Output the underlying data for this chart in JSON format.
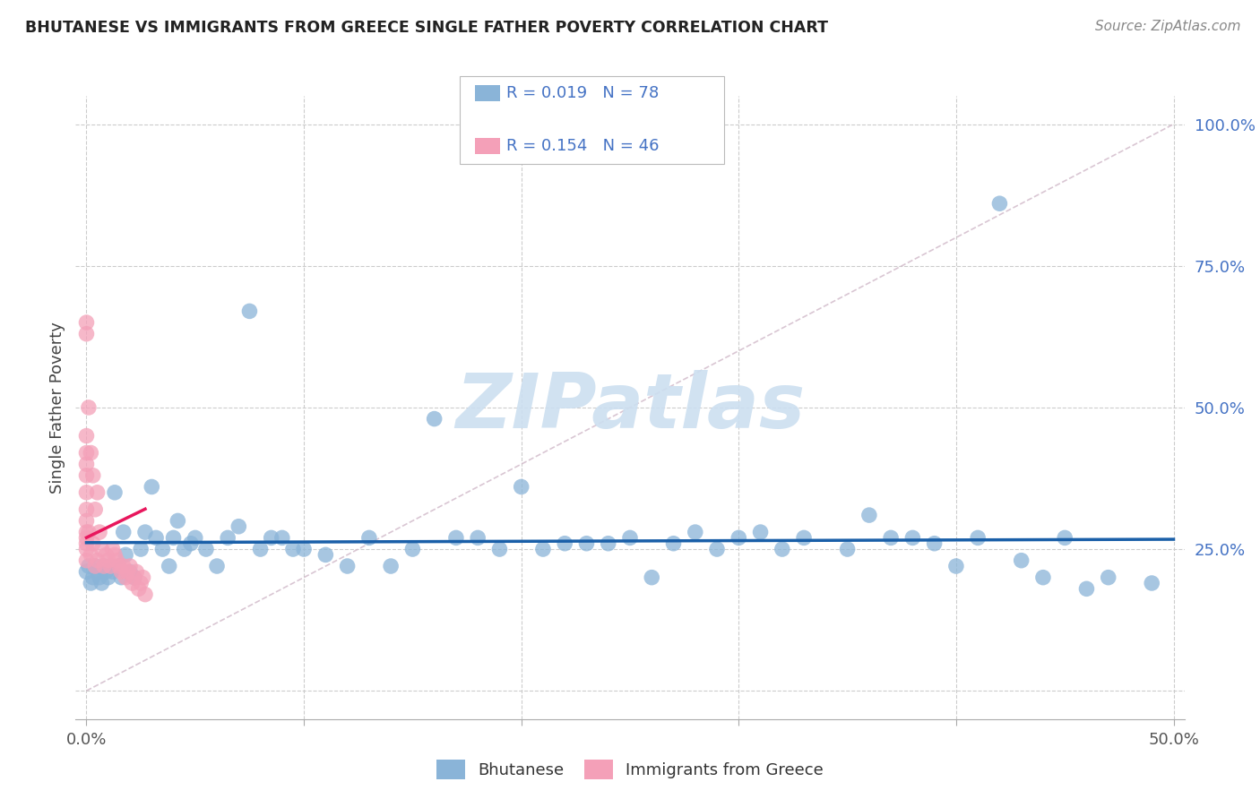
{
  "title": "BHUTANESE VS IMMIGRANTS FROM GREECE SINGLE FATHER POVERTY CORRELATION CHART",
  "source": "Source: ZipAtlas.com",
  "ylabel": "Single Father Poverty",
  "xlim": [
    -0.005,
    0.505
  ],
  "ylim": [
    -0.05,
    1.05
  ],
  "x_ticks": [
    0.0,
    0.1,
    0.2,
    0.3,
    0.4,
    0.5
  ],
  "y_ticks": [
    0.0,
    0.25,
    0.5,
    0.75,
    1.0
  ],
  "r_bhutanese": 0.019,
  "n_bhutanese": 78,
  "r_greece": 0.154,
  "n_greece": 46,
  "bhutanese_x": [
    0.0,
    0.001,
    0.002,
    0.003,
    0.004,
    0.005,
    0.006,
    0.007,
    0.008,
    0.009,
    0.01,
    0.011,
    0.012,
    0.013,
    0.015,
    0.016,
    0.017,
    0.018,
    0.02,
    0.022,
    0.025,
    0.027,
    0.03,
    0.032,
    0.035,
    0.038,
    0.04,
    0.042,
    0.045,
    0.048,
    0.05,
    0.055,
    0.06,
    0.065,
    0.07,
    0.075,
    0.08,
    0.085,
    0.09,
    0.095,
    0.1,
    0.11,
    0.12,
    0.13,
    0.14,
    0.15,
    0.16,
    0.17,
    0.18,
    0.19,
    0.2,
    0.21,
    0.22,
    0.23,
    0.24,
    0.25,
    0.26,
    0.27,
    0.28,
    0.29,
    0.3,
    0.31,
    0.32,
    0.33,
    0.35,
    0.36,
    0.37,
    0.38,
    0.39,
    0.4,
    0.41,
    0.42,
    0.43,
    0.44,
    0.45,
    0.46,
    0.47,
    0.49
  ],
  "bhutanese_y": [
    0.21,
    0.22,
    0.19,
    0.2,
    0.22,
    0.21,
    0.2,
    0.19,
    0.22,
    0.21,
    0.2,
    0.22,
    0.21,
    0.35,
    0.22,
    0.2,
    0.28,
    0.24,
    0.21,
    0.2,
    0.25,
    0.28,
    0.36,
    0.27,
    0.25,
    0.22,
    0.27,
    0.3,
    0.25,
    0.26,
    0.27,
    0.25,
    0.22,
    0.27,
    0.29,
    0.67,
    0.25,
    0.27,
    0.27,
    0.25,
    0.25,
    0.24,
    0.22,
    0.27,
    0.22,
    0.25,
    0.48,
    0.27,
    0.27,
    0.25,
    0.36,
    0.25,
    0.26,
    0.26,
    0.26,
    0.27,
    0.2,
    0.26,
    0.28,
    0.25,
    0.27,
    0.28,
    0.25,
    0.27,
    0.25,
    0.31,
    0.27,
    0.27,
    0.26,
    0.22,
    0.27,
    0.86,
    0.23,
    0.2,
    0.27,
    0.18,
    0.2,
    0.19
  ],
  "greece_x": [
    0.0,
    0.0,
    0.0,
    0.0,
    0.0,
    0.0,
    0.0,
    0.0,
    0.0,
    0.0,
    0.0,
    0.0,
    0.0,
    0.0,
    0.001,
    0.001,
    0.002,
    0.002,
    0.003,
    0.003,
    0.004,
    0.004,
    0.005,
    0.005,
    0.006,
    0.007,
    0.008,
    0.009,
    0.01,
    0.011,
    0.012,
    0.013,
    0.014,
    0.015,
    0.016,
    0.017,
    0.018,
    0.019,
    0.02,
    0.021,
    0.022,
    0.023,
    0.024,
    0.025,
    0.026,
    0.027
  ],
  "greece_y": [
    0.65,
    0.63,
    0.45,
    0.42,
    0.4,
    0.38,
    0.35,
    0.32,
    0.3,
    0.28,
    0.27,
    0.26,
    0.25,
    0.23,
    0.5,
    0.28,
    0.42,
    0.24,
    0.38,
    0.26,
    0.32,
    0.22,
    0.35,
    0.23,
    0.28,
    0.25,
    0.22,
    0.24,
    0.23,
    0.22,
    0.25,
    0.24,
    0.23,
    0.22,
    0.21,
    0.22,
    0.2,
    0.21,
    0.22,
    0.19,
    0.2,
    0.21,
    0.18,
    0.19,
    0.2,
    0.17
  ],
  "bhutanese_line_color": "#1a5fa8",
  "greece_line_color": "#e8175d",
  "scatter_bhutanese_color": "#8ab4d8",
  "scatter_greece_color": "#f4a0b8",
  "diagonal_line_color": "#d0b8c8",
  "watermark_color": "#ccdff0",
  "background_color": "#ffffff",
  "grid_color": "#cccccc",
  "ytick_color": "#4472c4",
  "xtick_color": "#555555"
}
